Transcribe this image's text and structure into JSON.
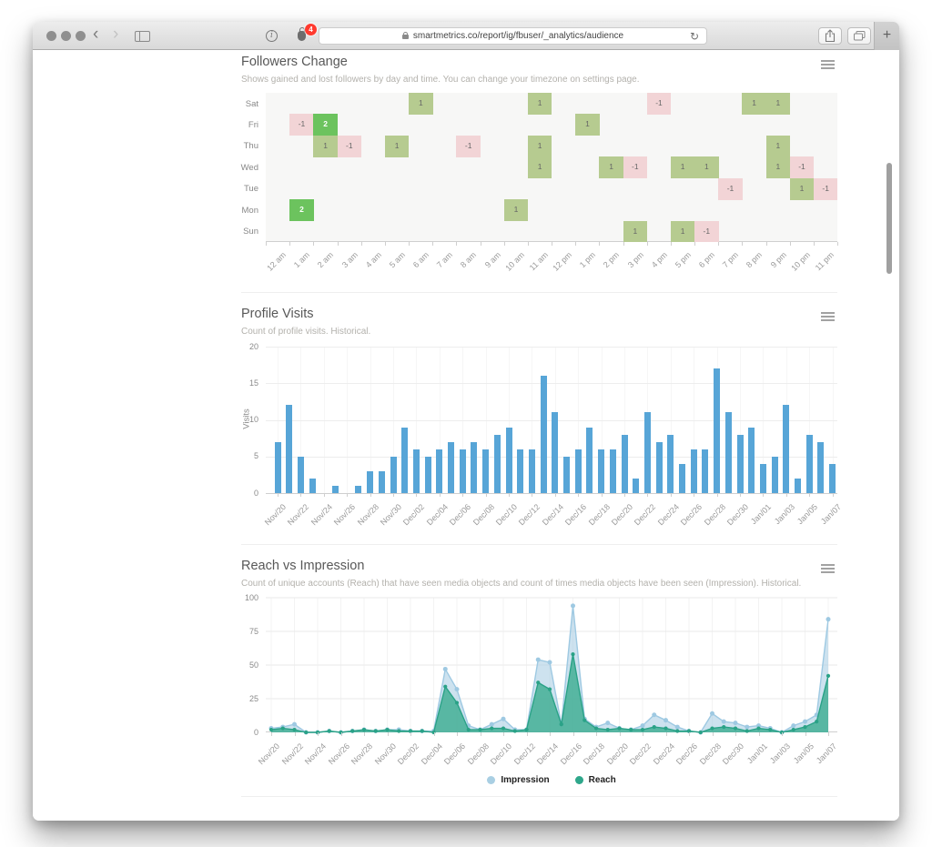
{
  "browser": {
    "url": "smartmetrics.co/report/ig/fbuser/_analytics/audience",
    "notification_badge": "4",
    "new_tab_label": "+"
  },
  "page": {
    "sections": [
      {
        "title": "Followers Change",
        "subtitle": "Shows gained and lost followers by day and time. You can change your timezone on settings page."
      },
      {
        "title": "Profile Visits",
        "subtitle": "Count of profile visits. Historical.",
        "y_axis_label": "Visits"
      },
      {
        "title": "Reach vs Impression",
        "subtitle": "Count of unique accounts (Reach) that have seen media objects and count of times media objects have been seen (Impression). Historical."
      }
    ],
    "legend": [
      {
        "label": "Impression",
        "color": "#a9cfe3"
      },
      {
        "label": "Reach",
        "color": "#2fa78b"
      }
    ]
  },
  "chart_data": [
    {
      "type": "heatmap",
      "title": "Followers Change",
      "rows": [
        "Sat",
        "Fri",
        "Thu",
        "Wed",
        "Tue",
        "Mon",
        "Sun"
      ],
      "columns": [
        "12 am",
        "1 am",
        "2 am",
        "3 am",
        "4 am",
        "5 am",
        "6 am",
        "7 am",
        "8 am",
        "9 am",
        "10 am",
        "11 am",
        "12 pm",
        "1 pm",
        "2 pm",
        "3 pm",
        "4 pm",
        "5 pm",
        "6 pm",
        "7 pm",
        "8 pm",
        "9 pm",
        "10 pm",
        "11 pm"
      ],
      "cells": [
        {
          "day": "Sat",
          "hour": "6 am",
          "value": 1
        },
        {
          "day": "Sat",
          "hour": "11 am",
          "value": 1
        },
        {
          "day": "Sat",
          "hour": "4 pm",
          "value": -1
        },
        {
          "day": "Sat",
          "hour": "8 pm",
          "value": 1
        },
        {
          "day": "Sat",
          "hour": "9 pm",
          "value": 1
        },
        {
          "day": "Fri",
          "hour": "1 am",
          "value": -1
        },
        {
          "day": "Fri",
          "hour": "2 am",
          "value": 2
        },
        {
          "day": "Fri",
          "hour": "1 pm",
          "value": 1
        },
        {
          "day": "Thu",
          "hour": "2 am",
          "value": 1
        },
        {
          "day": "Thu",
          "hour": "3 am",
          "value": -1
        },
        {
          "day": "Thu",
          "hour": "5 am",
          "value": 1
        },
        {
          "day": "Thu",
          "hour": "8 am",
          "value": -1
        },
        {
          "day": "Thu",
          "hour": "11 am",
          "value": 1
        },
        {
          "day": "Thu",
          "hour": "9 pm",
          "value": 1
        },
        {
          "day": "Wed",
          "hour": "11 am",
          "value": 1
        },
        {
          "day": "Wed",
          "hour": "2 pm",
          "value": 1
        },
        {
          "day": "Wed",
          "hour": "3 pm",
          "value": -1
        },
        {
          "day": "Wed",
          "hour": "5 pm",
          "value": 1
        },
        {
          "day": "Wed",
          "hour": "6 pm",
          "value": 1
        },
        {
          "day": "Wed",
          "hour": "9 pm",
          "value": 1
        },
        {
          "day": "Wed",
          "hour": "10 pm",
          "value": -1
        },
        {
          "day": "Tue",
          "hour": "7 pm",
          "value": -1
        },
        {
          "day": "Tue",
          "hour": "10 pm",
          "value": 1
        },
        {
          "day": "Tue",
          "hour": "11 pm",
          "value": -1
        },
        {
          "day": "Mon",
          "hour": "1 am",
          "value": 2
        },
        {
          "day": "Mon",
          "hour": "10 am",
          "value": 1
        },
        {
          "day": "Sun",
          "hour": "3 pm",
          "value": 1
        },
        {
          "day": "Sun",
          "hour": "5 pm",
          "value": 1
        },
        {
          "day": "Sun",
          "hour": "6 pm",
          "value": -1
        }
      ],
      "colors": {
        "gain": "#b6cb90",
        "gain_strong": "#6cc35e",
        "loss": "#f2d4d6"
      }
    },
    {
      "type": "bar",
      "title": "Profile Visits",
      "ylabel": "Visits",
      "ylim": [
        0,
        20
      ],
      "yticks": [
        0,
        5,
        10,
        15,
        20
      ],
      "tick_every": 2,
      "bar_color": "#57a5d7",
      "categories": [
        "Nov/20",
        "Nov/21",
        "Nov/22",
        "Nov/23",
        "Nov/24",
        "Nov/25",
        "Nov/26",
        "Nov/27",
        "Nov/28",
        "Nov/29",
        "Nov/30",
        "Dec/01",
        "Dec/02",
        "Dec/03",
        "Dec/04",
        "Dec/05",
        "Dec/06",
        "Dec/07",
        "Dec/08",
        "Dec/09",
        "Dec/10",
        "Dec/11",
        "Dec/12",
        "Dec/13",
        "Dec/14",
        "Dec/15",
        "Dec/16",
        "Dec/17",
        "Dec/18",
        "Dec/19",
        "Dec/20",
        "Dec/21",
        "Dec/22",
        "Dec/23",
        "Dec/24",
        "Dec/25",
        "Dec/26",
        "Dec/27",
        "Dec/28",
        "Dec/29",
        "Dec/30",
        "Dec/31",
        "Jan/01",
        "Jan/02",
        "Jan/03",
        "Jan/04",
        "Jan/05",
        "Jan/06",
        "Jan/07"
      ],
      "values": [
        7,
        12,
        5,
        2,
        0,
        1,
        0,
        1,
        3,
        3,
        5,
        9,
        6,
        5,
        6,
        7,
        6,
        7,
        6,
        8,
        9,
        6,
        6,
        16,
        11,
        5,
        6,
        9,
        6,
        6,
        8,
        2,
        11,
        7,
        8,
        4,
        6,
        6,
        17,
        11,
        8,
        9,
        4,
        5,
        12,
        2,
        8,
        7,
        4
      ]
    },
    {
      "type": "area",
      "title": "Reach vs Impression",
      "ylim": [
        0,
        100
      ],
      "yticks": [
        0,
        25,
        50,
        75,
        100
      ],
      "tick_every": 2,
      "categories": [
        "Nov/20",
        "Nov/21",
        "Nov/22",
        "Nov/23",
        "Nov/24",
        "Nov/25",
        "Nov/26",
        "Nov/27",
        "Nov/28",
        "Nov/29",
        "Nov/30",
        "Dec/01",
        "Dec/02",
        "Dec/03",
        "Dec/04",
        "Dec/05",
        "Dec/06",
        "Dec/07",
        "Dec/08",
        "Dec/09",
        "Dec/10",
        "Dec/11",
        "Dec/12",
        "Dec/13",
        "Dec/14",
        "Dec/15",
        "Dec/16",
        "Dec/17",
        "Dec/18",
        "Dec/19",
        "Dec/20",
        "Dec/21",
        "Dec/22",
        "Dec/23",
        "Dec/24",
        "Dec/25",
        "Dec/26",
        "Dec/27",
        "Dec/28",
        "Dec/29",
        "Dec/30",
        "Dec/31",
        "Jan/01",
        "Jan/02",
        "Jan/03",
        "Jan/04",
        "Jan/05",
        "Jan/06",
        "Jan/07"
      ],
      "series": [
        {
          "name": "Impression",
          "color": "#9ec9e2",
          "fill": "rgba(171,206,229,0.6)",
          "values": [
            3,
            4,
            6,
            0,
            0,
            1,
            0,
            1,
            2,
            1,
            2,
            2,
            1,
            1,
            1,
            47,
            32,
            5,
            2,
            6,
            10,
            2,
            2,
            54,
            52,
            6,
            94,
            10,
            4,
            7,
            3,
            2,
            5,
            13,
            9,
            4,
            1,
            0,
            14,
            8,
            7,
            4,
            5,
            3,
            0,
            5,
            8,
            13,
            84
          ]
        },
        {
          "name": "Reach",
          "color": "#2aa287",
          "fill": "rgba(62,173,146,0.82)",
          "values": [
            2,
            3,
            2,
            0,
            0,
            1,
            0,
            1,
            2,
            1,
            2,
            1,
            1,
            1,
            0,
            34,
            22,
            2,
            2,
            3,
            3,
            1,
            2,
            37,
            32,
            6,
            58,
            9,
            3,
            2,
            3,
            2,
            2,
            4,
            3,
            1,
            1,
            0,
            3,
            4,
            3,
            1,
            3,
            2,
            0,
            2,
            4,
            8,
            42
          ]
        }
      ]
    }
  ]
}
